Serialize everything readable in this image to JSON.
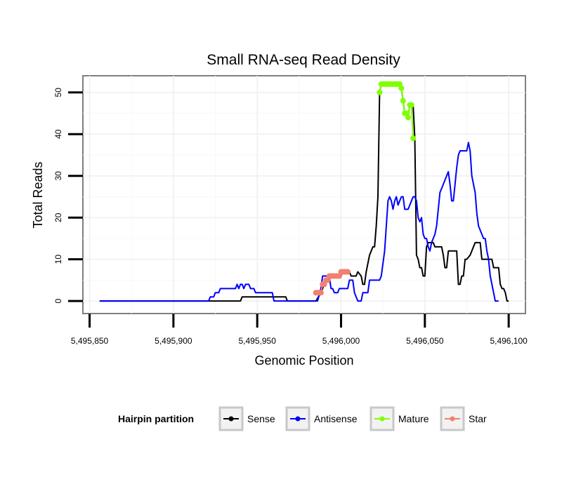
{
  "chart_data": {
    "type": "line",
    "title": "Small RNA-seq Read Density",
    "xlabel": "Genomic Position",
    "ylabel": "Total Reads",
    "xlim": [
      5495846,
      5496110
    ],
    "ylim": [
      -3,
      54
    ],
    "x_ticks": [
      5495850,
      5495900,
      5495950,
      5496000,
      5496050,
      5496100
    ],
    "x_tick_labels": [
      "5,495,850",
      "5,495,900",
      "5,495,950",
      "5,496,000",
      "5,496,050",
      "5,496,100"
    ],
    "y_ticks": [
      0,
      10,
      20,
      30,
      40,
      50
    ],
    "y_tick_labels": [
      "0",
      "10",
      "20",
      "30",
      "40",
      "50"
    ],
    "grid": true,
    "legend": {
      "title": "Hairpin partition",
      "position": "bottom",
      "entries": [
        "Sense",
        "Antisense",
        "Mature",
        "Star"
      ]
    },
    "series": [
      {
        "name": "Sense",
        "color": "#000000",
        "style": "line",
        "points": [
          [
            5495856,
            0
          ],
          [
            5495940,
            0
          ],
          [
            5495941,
            1
          ],
          [
            5495967,
            1
          ],
          [
            5495968,
            0
          ],
          [
            5495985,
            0
          ],
          [
            5495988,
            2
          ],
          [
            5495990,
            4
          ],
          [
            5495992,
            5
          ],
          [
            5495994,
            6
          ],
          [
            5496000,
            6
          ],
          [
            5496001,
            7
          ],
          [
            5496005,
            7
          ],
          [
            5496006,
            6
          ],
          [
            5496009,
            6
          ],
          [
            5496010,
            7
          ],
          [
            5496012,
            6
          ],
          [
            5496013,
            4
          ],
          [
            5496014,
            4
          ],
          [
            5496015,
            7
          ],
          [
            5496017,
            11
          ],
          [
            5496019,
            13
          ],
          [
            5496020,
            13
          ],
          [
            5496021,
            18
          ],
          [
            5496022,
            25
          ],
          [
            5496023,
            50
          ],
          [
            5496024,
            52
          ],
          [
            5496035,
            52
          ],
          [
            5496036,
            51
          ],
          [
            5496037,
            48
          ],
          [
            5496038,
            45
          ],
          [
            5496040,
            44
          ],
          [
            5496041,
            47
          ],
          [
            5496043,
            47
          ],
          [
            5496044,
            39
          ],
          [
            5496045,
            11
          ],
          [
            5496046,
            10
          ],
          [
            5496047,
            8
          ],
          [
            5496048,
            8
          ],
          [
            5496049,
            6
          ],
          [
            5496050,
            6
          ],
          [
            5496051,
            13
          ],
          [
            5496052,
            14
          ],
          [
            5496055,
            14
          ],
          [
            5496056,
            13
          ],
          [
            5496060,
            13
          ],
          [
            5496061,
            11
          ],
          [
            5496062,
            8
          ],
          [
            5496063,
            8
          ],
          [
            5496064,
            12
          ],
          [
            5496069,
            12
          ],
          [
            5496070,
            4
          ],
          [
            5496071,
            4
          ],
          [
            5496072,
            6
          ],
          [
            5496073,
            6
          ],
          [
            5496074,
            10
          ],
          [
            5496075,
            10
          ],
          [
            5496077,
            11
          ],
          [
            5496079,
            13
          ],
          [
            5496080,
            14
          ],
          [
            5496083,
            14
          ],
          [
            5496084,
            10
          ],
          [
            5496090,
            10
          ],
          [
            5496091,
            8
          ],
          [
            5496094,
            8
          ],
          [
            5496095,
            4
          ],
          [
            5496096,
            3
          ],
          [
            5496097,
            3
          ],
          [
            5496098,
            2
          ],
          [
            5496099,
            0
          ],
          [
            5496100,
            0
          ]
        ]
      },
      {
        "name": "Antisense",
        "color": "#0000ff",
        "style": "line",
        "points": [
          [
            5495856,
            0
          ],
          [
            5495921,
            0
          ],
          [
            5495922,
            1
          ],
          [
            5495924,
            1
          ],
          [
            5495925,
            2
          ],
          [
            5495927,
            2
          ],
          [
            5495928,
            3
          ],
          [
            5495937,
            3
          ],
          [
            5495938,
            4
          ],
          [
            5495939,
            3
          ],
          [
            5495940,
            4
          ],
          [
            5495941,
            4
          ],
          [
            5495942,
            3
          ],
          [
            5495943,
            4
          ],
          [
            5495945,
            4
          ],
          [
            5495946,
            3
          ],
          [
            5495948,
            3
          ],
          [
            5495949,
            2
          ],
          [
            5495959,
            2
          ],
          [
            5495960,
            0
          ],
          [
            5495986,
            0
          ],
          [
            5495988,
            3
          ],
          [
            5495989,
            6
          ],
          [
            5495993,
            6
          ],
          [
            5495994,
            3
          ],
          [
            5495995,
            3
          ],
          [
            5495996,
            2
          ],
          [
            5495998,
            2
          ],
          [
            5495999,
            3
          ],
          [
            5496004,
            3
          ],
          [
            5496005,
            5
          ],
          [
            5496007,
            5
          ],
          [
            5496008,
            2
          ],
          [
            5496010,
            0
          ],
          [
            5496012,
            0
          ],
          [
            5496013,
            2
          ],
          [
            5496016,
            2
          ],
          [
            5496017,
            5
          ],
          [
            5496023,
            5
          ],
          [
            5496024,
            6
          ],
          [
            5496025,
            9
          ],
          [
            5496026,
            12
          ],
          [
            5496027,
            18
          ],
          [
            5496028,
            24
          ],
          [
            5496029,
            25
          ],
          [
            5496030,
            24
          ],
          [
            5496031,
            22
          ],
          [
            5496032,
            24
          ],
          [
            5496033,
            25
          ],
          [
            5496034,
            23
          ],
          [
            5496035,
            24
          ],
          [
            5496036,
            25
          ],
          [
            5496037,
            25
          ],
          [
            5496038,
            22
          ],
          [
            5496040,
            22
          ],
          [
            5496041,
            23
          ],
          [
            5496042,
            24
          ],
          [
            5496043,
            25
          ],
          [
            5496044,
            25
          ],
          [
            5496045,
            24
          ],
          [
            5496046,
            20
          ],
          [
            5496047,
            19
          ],
          [
            5496048,
            20
          ],
          [
            5496049,
            16
          ],
          [
            5496050,
            15
          ],
          [
            5496051,
            15
          ],
          [
            5496052,
            13
          ],
          [
            5496053,
            12
          ],
          [
            5496054,
            14
          ],
          [
            5496055,
            15
          ],
          [
            5496056,
            16
          ],
          [
            5496057,
            18
          ],
          [
            5496058,
            22
          ],
          [
            5496059,
            26
          ],
          [
            5496060,
            27
          ],
          [
            5496061,
            28
          ],
          [
            5496062,
            29
          ],
          [
            5496063,
            30
          ],
          [
            5496064,
            31
          ],
          [
            5496065,
            28
          ],
          [
            5496066,
            24
          ],
          [
            5496067,
            24
          ],
          [
            5496068,
            28
          ],
          [
            5496069,
            32
          ],
          [
            5496070,
            35
          ],
          [
            5496071,
            36
          ],
          [
            5496075,
            36
          ],
          [
            5496076,
            38
          ],
          [
            5496077,
            36
          ],
          [
            5496078,
            30
          ],
          [
            5496079,
            28
          ],
          [
            5496080,
            26
          ],
          [
            5496081,
            21
          ],
          [
            5496082,
            18
          ],
          [
            5496083,
            17
          ],
          [
            5496084,
            16
          ],
          [
            5496085,
            15
          ],
          [
            5496086,
            15
          ],
          [
            5496087,
            12
          ],
          [
            5496088,
            10
          ],
          [
            5496089,
            6
          ],
          [
            5496090,
            4
          ],
          [
            5496091,
            2
          ],
          [
            5496092,
            0
          ],
          [
            5496094,
            0
          ]
        ]
      },
      {
        "name": "Mature",
        "color": "#7fff00",
        "style": "points",
        "points": [
          [
            5496023,
            50
          ],
          [
            5496024,
            52
          ],
          [
            5496025,
            52
          ],
          [
            5496026,
            52
          ],
          [
            5496027,
            52
          ],
          [
            5496028,
            52
          ],
          [
            5496029,
            52
          ],
          [
            5496030,
            52
          ],
          [
            5496031,
            52
          ],
          [
            5496032,
            52
          ],
          [
            5496033,
            52
          ],
          [
            5496034,
            52
          ],
          [
            5496035,
            52
          ],
          [
            5496036,
            51
          ],
          [
            5496037,
            48
          ],
          [
            5496038,
            45
          ],
          [
            5496039,
            45
          ],
          [
            5496040,
            44
          ],
          [
            5496041,
            47
          ],
          [
            5496042,
            47
          ],
          [
            5496043,
            39
          ]
        ]
      },
      {
        "name": "Star",
        "color": "#f08070",
        "style": "points",
        "points": [
          [
            5495985,
            2
          ],
          [
            5495986,
            2
          ],
          [
            5495987,
            2
          ],
          [
            5495988,
            2
          ],
          [
            5495989,
            4
          ],
          [
            5495990,
            4
          ],
          [
            5495991,
            5
          ],
          [
            5495992,
            5
          ],
          [
            5495993,
            6
          ],
          [
            5495994,
            6
          ],
          [
            5495995,
            6
          ],
          [
            5495996,
            6
          ],
          [
            5495997,
            6
          ],
          [
            5495998,
            6
          ],
          [
            5495999,
            6
          ],
          [
            5496000,
            7
          ],
          [
            5496001,
            7
          ],
          [
            5496002,
            7
          ],
          [
            5496003,
            7
          ],
          [
            5496004,
            7
          ]
        ]
      }
    ]
  }
}
